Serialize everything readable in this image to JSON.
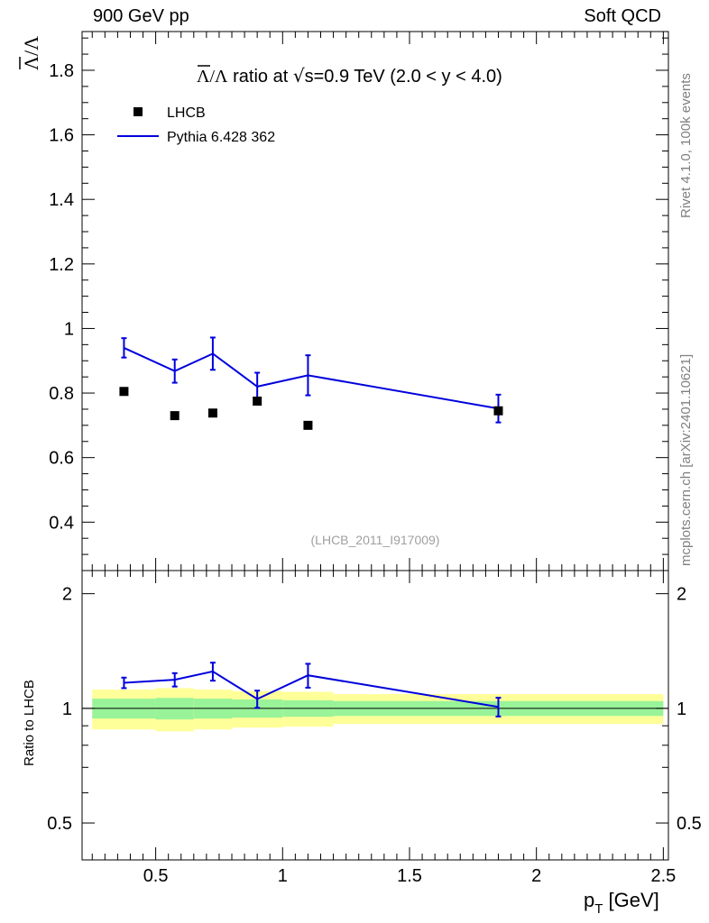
{
  "header": {
    "left": "900 GeV pp",
    "right": "Soft QCD"
  },
  "side_text": {
    "top": "Rivet 4.1.0,  100k events",
    "bottom": "mcplots.cern.ch [arXiv:2401.10621]"
  },
  "chart_data": {
    "type": "scatter",
    "title": "Λ̄/Λ ratio at √s=0.9 TeV (2.0 < y < 4.0)",
    "title_prefix": "Λ/Λ",
    "title_rest": " ratio at ",
    "title_sqrt": "√",
    "title_tail": "s=0.9 TeV (2.0 < y < 4.0)",
    "ylabel": "Λ/Λ",
    "xlabel": "p",
    "xlabel_sub": "T",
    "xlabel_unit": " [GeV]",
    "ratio_ylabel": "Ratio to LHCB",
    "analysis_tag": "(LHCB_2011_I917009)",
    "legend_position": "top-left",
    "xlim": [
      0.21,
      2.52
    ],
    "main_ylim": [
      0.25,
      1.92
    ],
    "ratio_ylim": [
      0.4,
      2.3
    ],
    "main_yticks": [
      "0.4",
      "0.6",
      "0.8",
      "1",
      "1.2",
      "1.4",
      "1.6",
      "1.8"
    ],
    "ratio_yticks": [
      "0.5",
      "1",
      "2"
    ],
    "xticks": [
      "0.5",
      "1",
      "1.5",
      "2",
      "2.5"
    ],
    "series": [
      {
        "name": "LHCB",
        "kind": "data",
        "marker": "square",
        "color": "#000000",
        "x": [
          0.375,
          0.575,
          0.725,
          0.9,
          1.1,
          1.85
        ],
        "y": [
          0.805,
          0.73,
          0.738,
          0.775,
          0.7,
          0.745
        ]
      },
      {
        "name": "Pythia 6.428 362",
        "kind": "mc",
        "color": "#0000dd",
        "x": [
          0.375,
          0.575,
          0.725,
          0.9,
          1.1,
          1.85
        ],
        "y": [
          0.94,
          0.868,
          0.922,
          0.82,
          0.855,
          0.752
        ],
        "err": [
          0.03,
          0.036,
          0.05,
          0.043,
          0.062,
          0.043
        ]
      }
    ],
    "ratio": {
      "values": [
        1.167,
        1.189,
        1.25,
        1.058,
        1.221,
        1.009
      ],
      "err": [
        0.037,
        0.048,
        0.068,
        0.055,
        0.088,
        0.057
      ],
      "bins": [
        {
          "lo": 0.25,
          "hi": 0.5,
          "stat": 0.06,
          "total": 0.12
        },
        {
          "lo": 0.5,
          "hi": 0.65,
          "stat": 0.065,
          "total": 0.13
        },
        {
          "lo": 0.65,
          "hi": 0.8,
          "stat": 0.06,
          "total": 0.12
        },
        {
          "lo": 0.8,
          "hi": 1.0,
          "stat": 0.055,
          "total": 0.11
        },
        {
          "lo": 1.0,
          "hi": 1.2,
          "stat": 0.05,
          "total": 0.105
        },
        {
          "lo": 1.2,
          "hi": 2.5,
          "stat": 0.045,
          "total": 0.09
        }
      ]
    },
    "colors": {
      "stat_band": "#99f399",
      "total_band": "#ffff99",
      "ref_line": "#000000"
    }
  }
}
